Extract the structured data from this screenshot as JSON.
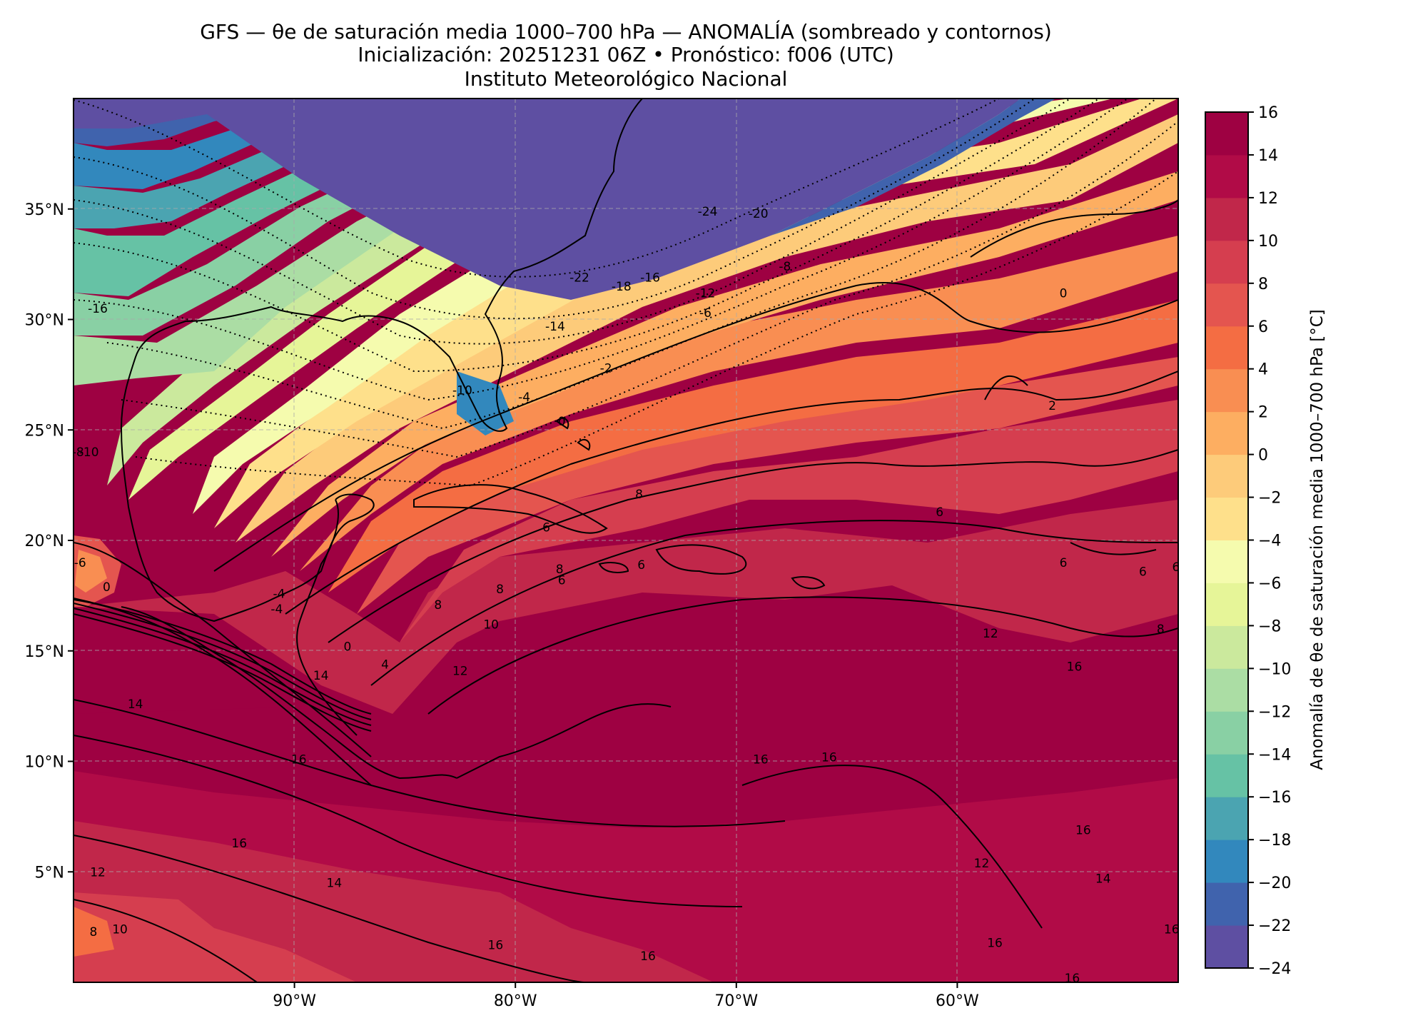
{
  "title": {
    "line1": "GFS — θe de saturación media 1000–700 hPa — ANOMALÍA (sombreado y contornos)",
    "line2": "Inicialización: 20251231 06Z   •   Pronóstico: f006 (UTC)",
    "line3": "Instituto Meteorológico Nacional"
  },
  "map": {
    "lon_range": [
      -100,
      -50
    ],
    "lat_range": [
      0,
      40
    ],
    "lon_ticks": [
      {
        "value": -90,
        "label": "90°W"
      },
      {
        "value": -80,
        "label": "80°W"
      },
      {
        "value": -70,
        "label": "70°W"
      },
      {
        "value": -60,
        "label": "60°W"
      }
    ],
    "lat_ticks": [
      {
        "value": 35,
        "label": "35°N"
      },
      {
        "value": 30,
        "label": "30°N"
      },
      {
        "value": 25,
        "label": "25°N"
      },
      {
        "value": 20,
        "label": "20°N"
      },
      {
        "value": 15,
        "label": "15°N"
      },
      {
        "value": 10,
        "label": "10°N"
      },
      {
        "value": 5,
        "label": "5°N"
      }
    ],
    "gridlines": "dashed",
    "contour_labels": [
      {
        "text": "-24",
        "lon": -71.3,
        "lat": 34.9
      },
      {
        "text": "-20",
        "lon": -69.0,
        "lat": 34.8
      },
      {
        "text": "-22",
        "lon": -77.1,
        "lat": 31.9
      },
      {
        "text": "-18",
        "lon": -75.2,
        "lat": 31.5
      },
      {
        "text": "-16",
        "lon": -73.9,
        "lat": 31.9
      },
      {
        "text": "-12",
        "lon": -71.4,
        "lat": 31.2
      },
      {
        "text": "-8",
        "lon": -67.8,
        "lat": 32.4
      },
      {
        "text": "-6",
        "lon": -71.4,
        "lat": 30.3
      },
      {
        "text": "0",
        "lon": -55.2,
        "lat": 31.2
      },
      {
        "text": "-14",
        "lon": -78.2,
        "lat": 29.7
      },
      {
        "text": "-16",
        "lon": -98.9,
        "lat": 30.5
      },
      {
        "text": "-2",
        "lon": -75.9,
        "lat": 27.8
      },
      {
        "text": "-10",
        "lon": -82.4,
        "lat": 26.8
      },
      {
        "text": "-4",
        "lon": -79.6,
        "lat": 26.5
      },
      {
        "text": "0",
        "lon": -77.9,
        "lat": 25.4
      },
      {
        "text": "2",
        "lon": -55.7,
        "lat": 26.1
      },
      {
        "text": "-10",
        "lon": -99.3,
        "lat": 24.0
      },
      {
        "text": "-8",
        "lon": -99.8,
        "lat": 24.0
      },
      {
        "text": "8",
        "lon": -74.4,
        "lat": 22.1
      },
      {
        "text": "6",
        "lon": -78.6,
        "lat": 20.6
      },
      {
        "text": "6",
        "lon": -60.8,
        "lat": 21.3
      },
      {
        "text": "6",
        "lon": -55.2,
        "lat": 19.0
      },
      {
        "text": "6",
        "lon": -51.6,
        "lat": 18.6
      },
      {
        "text": "6",
        "lon": -50.1,
        "lat": 18.8
      },
      {
        "text": "8",
        "lon": -78.0,
        "lat": 18.7
      },
      {
        "text": "6",
        "lon": -77.9,
        "lat": 18.2
      },
      {
        "text": "6",
        "lon": -74.3,
        "lat": 18.9
      },
      {
        "text": "8",
        "lon": -80.7,
        "lat": 17.8
      },
      {
        "text": "8",
        "lon": -83.5,
        "lat": 17.1
      },
      {
        "text": "-6",
        "lon": -99.7,
        "lat": 19.0
      },
      {
        "text": "0",
        "lon": -98.5,
        "lat": 17.9
      },
      {
        "text": "-4",
        "lon": -90.7,
        "lat": 17.6
      },
      {
        "text": "-4",
        "lon": -90.8,
        "lat": 16.9
      },
      {
        "text": "0",
        "lon": -87.6,
        "lat": 15.2
      },
      {
        "text": "4",
        "lon": -85.9,
        "lat": 14.4
      },
      {
        "text": "10",
        "lon": -81.1,
        "lat": 16.2
      },
      {
        "text": "12",
        "lon": -82.5,
        "lat": 14.1
      },
      {
        "text": "12",
        "lon": -58.5,
        "lat": 15.8
      },
      {
        "text": "8",
        "lon": -50.8,
        "lat": 16.0
      },
      {
        "text": "14",
        "lon": -88.8,
        "lat": 13.9
      },
      {
        "text": "14",
        "lon": -97.2,
        "lat": 12.6
      },
      {
        "text": "16",
        "lon": -54.7,
        "lat": 14.3
      },
      {
        "text": "16",
        "lon": -89.8,
        "lat": 10.1
      },
      {
        "text": "16",
        "lon": -68.9,
        "lat": 10.1
      },
      {
        "text": "16",
        "lon": -65.8,
        "lat": 10.2
      },
      {
        "text": "16",
        "lon": -92.5,
        "lat": 6.3
      },
      {
        "text": "16",
        "lon": -54.3,
        "lat": 6.9
      },
      {
        "text": "12",
        "lon": -98.9,
        "lat": 5.0
      },
      {
        "text": "14",
        "lon": -88.2,
        "lat": 4.5
      },
      {
        "text": "12",
        "lon": -58.9,
        "lat": 5.4
      },
      {
        "text": "14",
        "lon": -53.4,
        "lat": 4.7
      },
      {
        "text": "10",
        "lon": -97.9,
        "lat": 2.4
      },
      {
        "text": "8",
        "lon": -99.1,
        "lat": 2.3
      },
      {
        "text": "16",
        "lon": -74.0,
        "lat": 1.2
      },
      {
        "text": "16",
        "lon": -80.9,
        "lat": 1.7
      },
      {
        "text": "16",
        "lon": -50.3,
        "lat": 2.4
      },
      {
        "text": "16",
        "lon": -54.8,
        "lat": 0.2
      },
      {
        "text": "16",
        "lon": -58.3,
        "lat": 1.8
      }
    ]
  },
  "colorbar": {
    "label": "Anomalía de θe de saturación media 1000–700 hPa [°C]",
    "range": [
      -24,
      16
    ],
    "ticks": [
      "16",
      "14",
      "12",
      "10",
      "8",
      "6",
      "4",
      "2",
      "0",
      "−2",
      "−4",
      "−6",
      "−8",
      "−10",
      "−12",
      "−14",
      "−16",
      "−18",
      "−20",
      "−22",
      "−24"
    ],
    "colors": [
      "#5e4fa2",
      "#4063ad",
      "#3288bd",
      "#4ba4b1",
      "#66c2a5",
      "#89d0a4",
      "#abdda4",
      "#cbe99d",
      "#e6f598",
      "#f5fbae",
      "#fee08b",
      "#fdcb7a",
      "#fdae61",
      "#f98e52",
      "#f46d43",
      "#e4554f",
      "#d53e4f",
      "#c1274a",
      "#b10b47",
      "#9e0142"
    ]
  }
}
